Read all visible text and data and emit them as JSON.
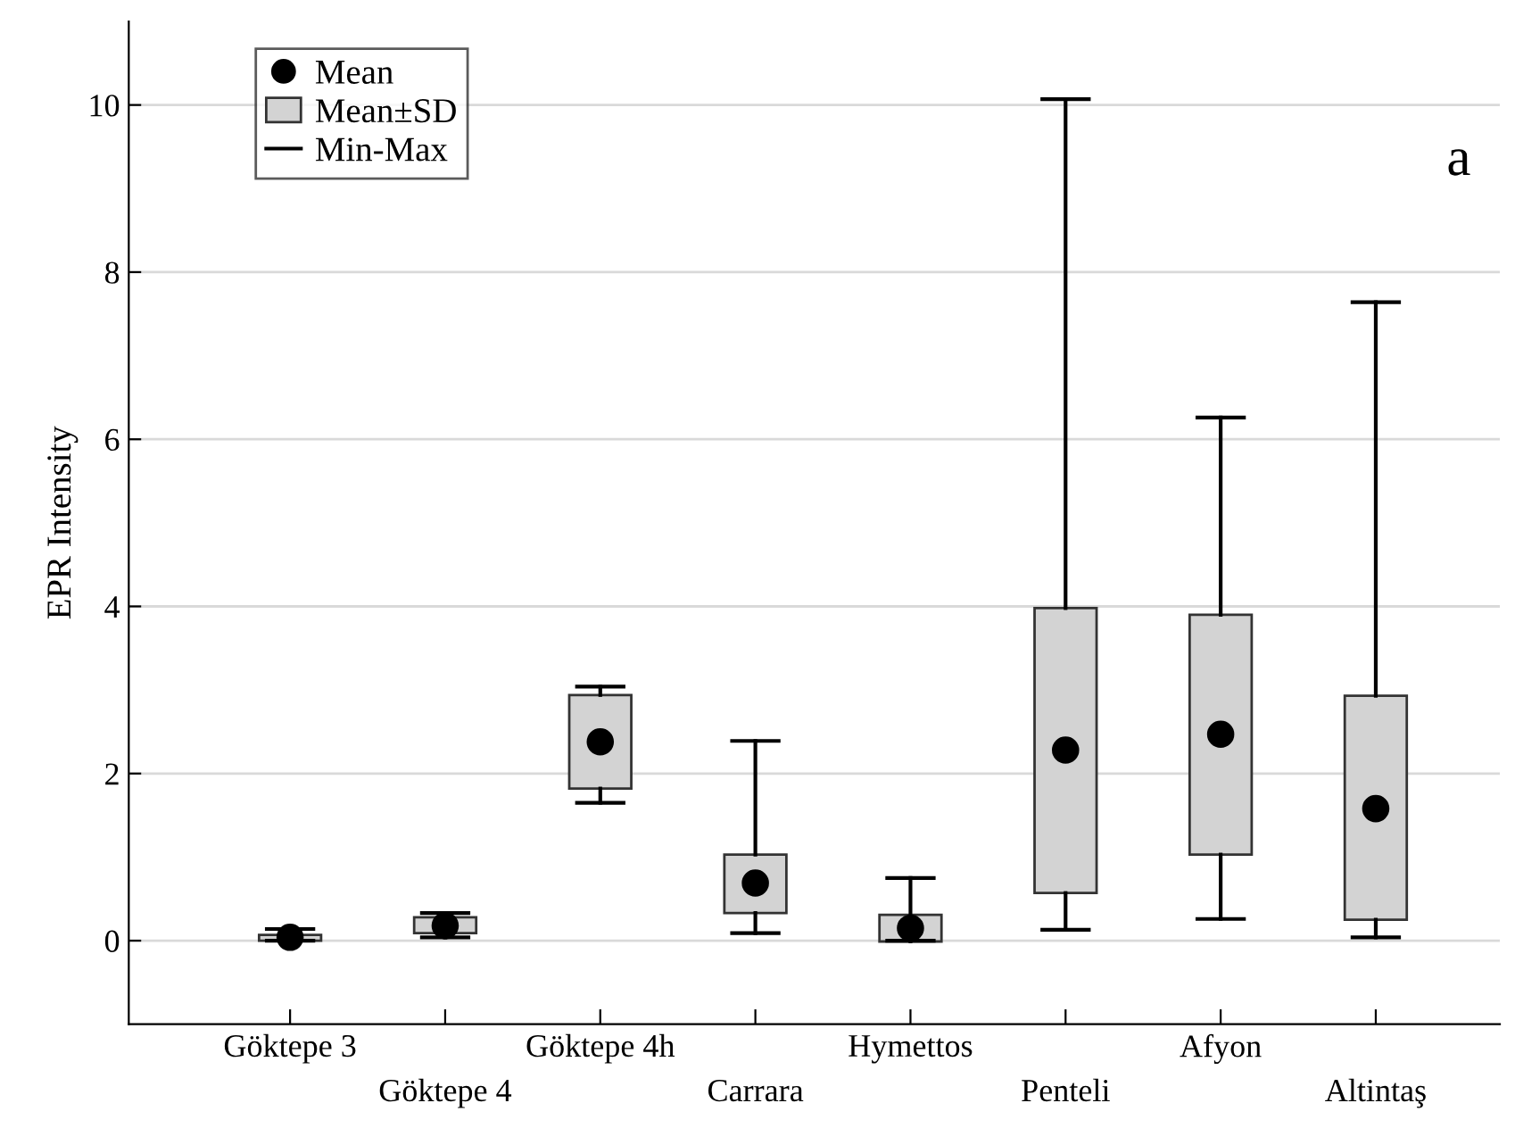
{
  "chart_data": {
    "type": "box",
    "ylabel": "EPR Intensity",
    "annotations": [
      "Mean",
      "Mean±SD",
      "Min-Max",
      "a"
    ],
    "categories": [
      "Göktepe 3",
      "Göktepe 4",
      "Göktepe 4h",
      "Carrara",
      "Hymettos",
      "Penteli",
      "Afyon",
      "Altintaş"
    ],
    "ylim": [
      -1,
      11
    ],
    "yticks": [
      0,
      2,
      4,
      6,
      8,
      10
    ],
    "grid": "y",
    "marker": "circle",
    "series": [
      {
        "color": "#d3d3d3",
        "boxes": [
          {
            "low": 0.0,
            "q1": 0.0,
            "mean": 0.04,
            "q3": 0.07,
            "high": 0.14
          },
          {
            "low": 0.04,
            "q1": 0.09,
            "mean": 0.18,
            "q3": 0.28,
            "high": 0.33
          },
          {
            "low": 1.65,
            "q1": 1.82,
            "mean": 2.38,
            "q3": 2.94,
            "high": 3.04
          },
          {
            "low": 0.09,
            "q1": 0.33,
            "mean": 0.69,
            "q3": 1.03,
            "high": 2.39
          },
          {
            "low": 0.0,
            "q1": -0.01,
            "mean": 0.15,
            "q3": 0.31,
            "high": 0.75
          },
          {
            "low": 0.13,
            "q1": 0.57,
            "mean": 2.28,
            "q3": 3.98,
            "high": 10.07
          },
          {
            "low": 0.26,
            "q1": 1.03,
            "mean": 2.47,
            "q3": 3.9,
            "high": 6.26
          },
          {
            "low": 0.04,
            "q1": 0.25,
            "mean": 1.58,
            "q3": 2.93,
            "high": 7.64
          }
        ]
      }
    ]
  }
}
